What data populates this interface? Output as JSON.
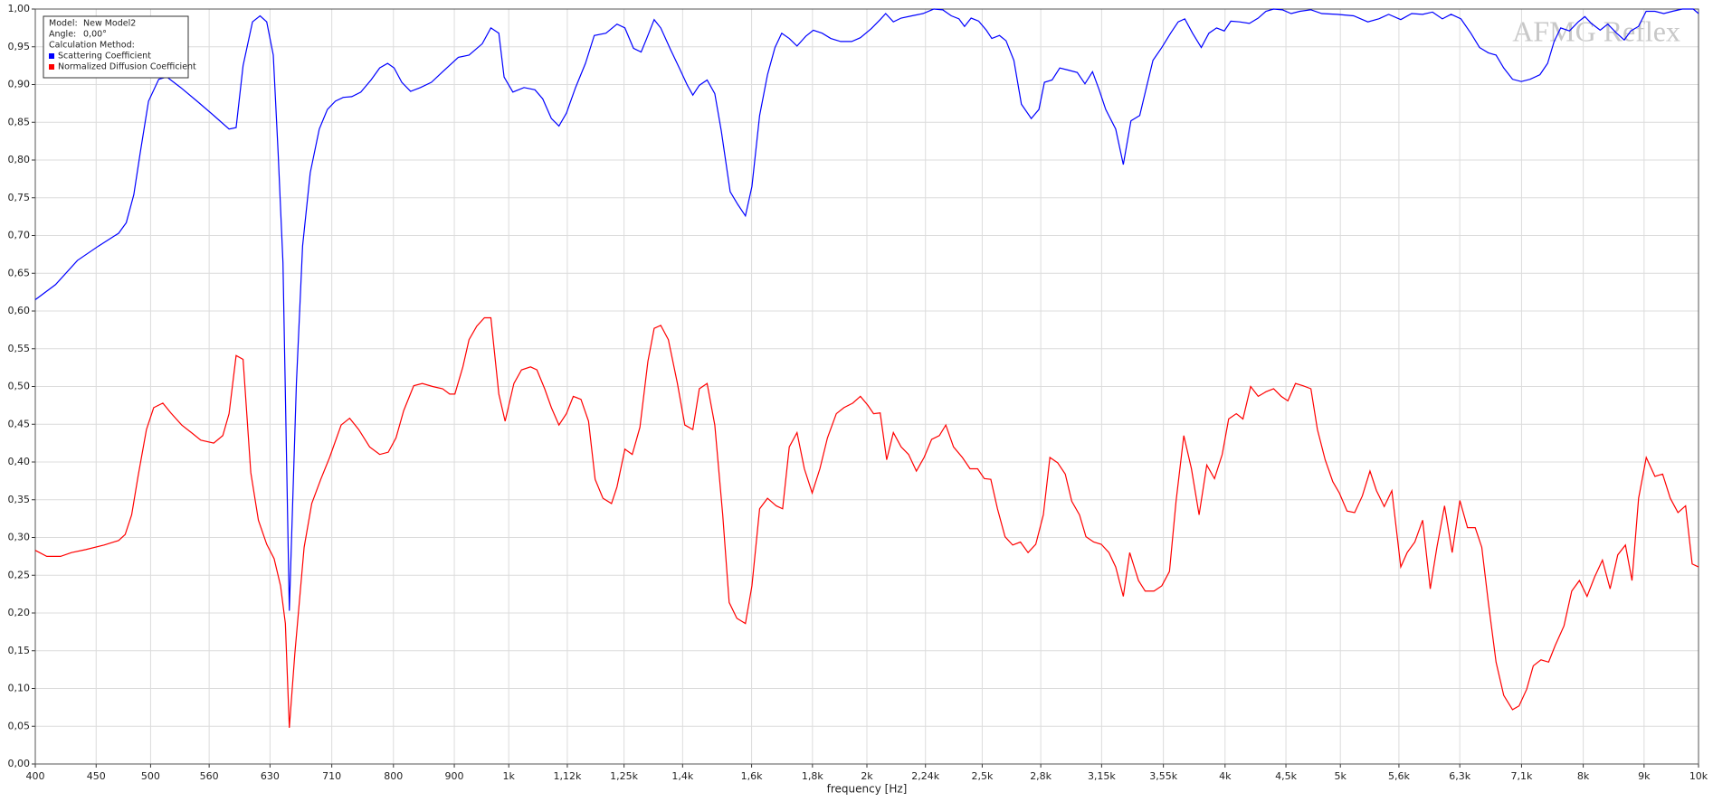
{
  "chart_data": {
    "type": "line",
    "x_label": "frequency [Hz]",
    "watermark": "AFMG Reflex",
    "info": [
      {
        "label": "Model:",
        "value": "New Model2"
      },
      {
        "label": "Angle:",
        "value": "0,00°"
      },
      {
        "label": "Calculation Method:"
      }
    ],
    "log_x": true,
    "grid": true,
    "legend": "upper left",
    "xlim": [
      400,
      10000
    ],
    "ylim": [
      0,
      1
    ],
    "xticks": [
      400,
      450,
      500,
      560,
      630,
      710,
      800,
      900,
      {
        "value": 1000,
        "label": "1k"
      },
      {
        "value": 1120,
        "label": "1,12k"
      },
      {
        "value": 1250,
        "label": "1,25k"
      },
      {
        "value": 1400,
        "label": "1,4k"
      },
      {
        "value": 1600,
        "label": "1,6k"
      },
      {
        "value": 1800,
        "label": "1,8k"
      },
      {
        "value": 2000,
        "label": "2k"
      },
      {
        "value": 2240,
        "label": "2,24k"
      },
      {
        "value": 2500,
        "label": "2,5k"
      },
      {
        "value": 2800,
        "label": "2,8k"
      },
      {
        "value": 3150,
        "label": "3,15k"
      },
      {
        "value": 3550,
        "label": "3,55k"
      },
      {
        "value": 4000,
        "label": "4k"
      },
      {
        "value": 4500,
        "label": "4,5k"
      },
      {
        "value": 5000,
        "label": "5k"
      },
      {
        "value": 5600,
        "label": "5,6k"
      },
      {
        "value": 6300,
        "label": "6,3k"
      },
      {
        "value": 7100,
        "label": "7,1k"
      },
      {
        "value": 8000,
        "label": "8k"
      },
      {
        "value": 9000,
        "label": "9k"
      },
      {
        "value": 10000,
        "label": "10k"
      }
    ],
    "yticks": [
      {
        "value": 0,
        "label": "0,00"
      },
      {
        "value": 0.05,
        "label": "0,05"
      },
      {
        "value": 0.1,
        "label": "0,10"
      },
      {
        "value": 0.15,
        "label": "0,15"
      },
      {
        "value": 0.2,
        "label": "0,20"
      },
      {
        "value": 0.25,
        "label": "0,25"
      },
      {
        "value": 0.3,
        "label": "0,30"
      },
      {
        "value": 0.35,
        "label": "0,35"
      },
      {
        "value": 0.4,
        "label": "0,40"
      },
      {
        "value": 0.45,
        "label": "0,45"
      },
      {
        "value": 0.5,
        "label": "0,50"
      },
      {
        "value": 0.55,
        "label": "0,55"
      },
      {
        "value": 0.6,
        "label": "0,60"
      },
      {
        "value": 0.65,
        "label": "0,65"
      },
      {
        "value": 0.7,
        "label": "0,70"
      },
      {
        "value": 0.75,
        "label": "0,75"
      },
      {
        "value": 0.8,
        "label": "0,80"
      },
      {
        "value": 0.85,
        "label": "0,85"
      },
      {
        "value": 0.9,
        "label": "0,90"
      },
      {
        "value": 0.95,
        "label": "0,95"
      },
      {
        "value": 1,
        "label": "1,00"
      }
    ],
    "series": [
      {
        "name": "Scattering Coefficient",
        "color": "#0000ff",
        "x": [
          400,
          416,
          434,
          452,
          470,
          477,
          484,
          490,
          498,
          508,
          516,
          530,
          547,
          565,
          582,
          590,
          598,
          609,
          618,
          626,
          634,
          640,
          646,
          654,
          663,
          671,
          681,
          693,
          704,
          715,
          726,
          738,
          751,
          766,
          779,
          791,
          801,
          813,
          827,
          843,
          861,
          880,
          907,
          926,
          950,
          966,
          981,
          991,
          1008,
          1030,
          1052,
          1068,
          1086,
          1102,
          1118,
          1138,
          1160,
          1180,
          1207,
          1233,
          1252,
          1273,
          1292,
          1306,
          1325,
          1342,
          1368,
          1391,
          1413,
          1428,
          1446,
          1468,
          1490,
          1509,
          1535,
          1558,
          1581,
          1601,
          1625,
          1650,
          1674,
          1696,
          1721,
          1747,
          1777,
          1803,
          1834,
          1865,
          1901,
          1942,
          1975,
          2017,
          2052,
          2074,
          2105,
          2137,
          2182,
          2229,
          2277,
          2316,
          2355,
          2390,
          2416,
          2447,
          2483,
          2520,
          2547,
          2585,
          2618,
          2658,
          2697,
          2749,
          2790,
          2820,
          2862,
          2905,
          2955,
          3005,
          3050,
          3095,
          3135,
          3175,
          3237,
          3285,
          3334,
          3391,
          3435,
          3479,
          3539,
          3600,
          3653,
          3700,
          3756,
          3820,
          3877,
          3935,
          3994,
          4045,
          4114,
          4193,
          4265,
          4329,
          4394,
          4469,
          4546,
          4623,
          4723,
          4824,
          4969,
          5130,
          5273,
          5386,
          5490,
          5620,
          5740,
          5863,
          5976,
          6091,
          6195,
          6314,
          6436,
          6546,
          6658,
          6758,
          6859,
          6977,
          7096,
          7218,
          7357,
          7467,
          7562,
          7659,
          7790,
          7923,
          8025,
          8127,
          8267,
          8390,
          8534,
          8661,
          8772,
          8903,
          9036,
          9191,
          9349,
          9508,
          9691,
          9899,
          10000
        ],
        "values": [
          0.615,
          0.635,
          0.667,
          0.686,
          0.703,
          0.717,
          0.754,
          0.809,
          0.878,
          0.907,
          0.91,
          0.896,
          0.878,
          0.859,
          0.841,
          0.843,
          0.925,
          0.983,
          0.991,
          0.983,
          0.939,
          0.809,
          0.664,
          0.203,
          0.504,
          0.686,
          0.783,
          0.841,
          0.867,
          0.878,
          0.883,
          0.884,
          0.89,
          0.906,
          0.922,
          0.928,
          0.922,
          0.903,
          0.891,
          0.896,
          0.903,
          0.917,
          0.936,
          0.939,
          0.954,
          0.975,
          0.968,
          0.91,
          0.89,
          0.896,
          0.893,
          0.881,
          0.855,
          0.845,
          0.862,
          0.896,
          0.928,
          0.965,
          0.968,
          0.98,
          0.975,
          0.948,
          0.943,
          0.961,
          0.986,
          0.975,
          0.946,
          0.922,
          0.899,
          0.886,
          0.899,
          0.906,
          0.888,
          0.838,
          0.758,
          0.741,
          0.726,
          0.765,
          0.859,
          0.913,
          0.949,
          0.968,
          0.961,
          0.951,
          0.964,
          0.972,
          0.968,
          0.961,
          0.957,
          0.957,
          0.962,
          0.974,
          0.986,
          0.994,
          0.983,
          0.988,
          0.991,
          0.994,
          1.0,
          0.999,
          0.991,
          0.987,
          0.977,
          0.988,
          0.984,
          0.972,
          0.961,
          0.965,
          0.958,
          0.932,
          0.874,
          0.855,
          0.867,
          0.903,
          0.906,
          0.922,
          0.919,
          0.916,
          0.901,
          0.917,
          0.893,
          0.867,
          0.841,
          0.794,
          0.852,
          0.859,
          0.896,
          0.932,
          0.949,
          0.968,
          0.983,
          0.987,
          0.968,
          0.949,
          0.968,
          0.975,
          0.971,
          0.984,
          0.983,
          0.981,
          0.988,
          0.997,
          1.0,
          0.999,
          0.994,
          0.997,
          0.999,
          0.994,
          0.993,
          0.991,
          0.983,
          0.987,
          0.993,
          0.986,
          0.994,
          0.993,
          0.996,
          0.987,
          0.993,
          0.987,
          0.968,
          0.949,
          0.942,
          0.939,
          0.922,
          0.907,
          0.904,
          0.907,
          0.913,
          0.928,
          0.957,
          0.975,
          0.971,
          0.983,
          0.99,
          0.981,
          0.972,
          0.98,
          0.968,
          0.959,
          0.971,
          0.977,
          0.997,
          0.997,
          0.994,
          0.997,
          1.0,
          1.0,
          0.994
        ]
      },
      {
        "name": "Normalized Diffusion Coefficient",
        "color": "#ff0000",
        "x": [
          400,
          409,
          420,
          429,
          441,
          457,
          470,
          476,
          482,
          488,
          496,
          503,
          512,
          520,
          531,
          542,
          551,
          565,
          575,
          582,
          590,
          598,
          607,
          616,
          626,
          635,
          643,
          649,
          654,
          661,
          673,
          683,
          695,
          707,
          723,
          735,
          748,
          764,
          779,
          792,
          804,
          816,
          832,
          846,
          863,
          880,
          892,
          901,
          915,
          926,
          940,
          954,
          966,
          981,
          993,
          1010,
          1025,
          1043,
          1056,
          1072,
          1086,
          1102,
          1118,
          1133,
          1150,
          1167,
          1182,
          1200,
          1220,
          1233,
          1252,
          1270,
          1289,
          1309,
          1325,
          1342,
          1362,
          1386,
          1406,
          1428,
          1446,
          1468,
          1490,
          1513,
          1532,
          1555,
          1581,
          1601,
          1625,
          1650,
          1678,
          1699,
          1721,
          1747,
          1772,
          1799,
          1826,
          1853,
          1885,
          1913,
          1946,
          1975,
          2004,
          2026,
          2052,
          2078,
          2105,
          2137,
          2168,
          2201,
          2234,
          2267,
          2301,
          2330,
          2365,
          2406,
          2442,
          2478,
          2510,
          2542,
          2575,
          2613,
          2652,
          2692,
          2732,
          2773,
          2814,
          2850,
          2893,
          2936,
          2973,
          3018,
          3056,
          3102,
          3148,
          3195,
          3237,
          3285,
          3326,
          3383,
          3427,
          3486,
          3539,
          3592,
          3638,
          3693,
          3748,
          3804,
          3861,
          3919,
          3978,
          4028,
          4088,
          4141,
          4203,
          4265,
          4329,
          4394,
          4459,
          4517,
          4584,
          4652,
          4723,
          4783,
          4855,
          4927,
          4990,
          5065,
          5140,
          5217,
          5295,
          5362,
          5443,
          5524,
          5620,
          5690,
          5775,
          5863,
          5950,
          6027,
          6117,
          6208,
          6301,
          6395,
          6491,
          6574,
          6658,
          6758,
          6859,
          6977,
          7066,
          7171,
          7263,
          7372,
          7482,
          7578,
          7708,
          7824,
          7941,
          8060,
          8180,
          8303,
          8427,
          8553,
          8681,
          8792,
          8905,
          9038,
          9191,
          9329,
          9468,
          9610,
          9753,
          9878,
          10000
        ],
        "values": [
          0.283,
          0.275,
          0.275,
          0.28,
          0.284,
          0.29,
          0.296,
          0.304,
          0.33,
          0.381,
          0.443,
          0.472,
          0.478,
          0.465,
          0.449,
          0.438,
          0.429,
          0.425,
          0.435,
          0.464,
          0.541,
          0.536,
          0.386,
          0.323,
          0.291,
          0.272,
          0.236,
          0.186,
          0.048,
          0.146,
          0.287,
          0.345,
          0.377,
          0.406,
          0.449,
          0.458,
          0.443,
          0.42,
          0.41,
          0.413,
          0.432,
          0.468,
          0.501,
          0.504,
          0.5,
          0.497,
          0.49,
          0.49,
          0.526,
          0.562,
          0.58,
          0.591,
          0.591,
          0.49,
          0.454,
          0.504,
          0.522,
          0.526,
          0.522,
          0.497,
          0.472,
          0.449,
          0.464,
          0.487,
          0.483,
          0.454,
          0.377,
          0.352,
          0.345,
          0.367,
          0.417,
          0.41,
          0.446,
          0.533,
          0.577,
          0.581,
          0.562,
          0.504,
          0.449,
          0.443,
          0.497,
          0.504,
          0.449,
          0.33,
          0.214,
          0.193,
          0.186,
          0.236,
          0.338,
          0.352,
          0.342,
          0.338,
          0.42,
          0.439,
          0.391,
          0.359,
          0.391,
          0.432,
          0.464,
          0.472,
          0.478,
          0.487,
          0.475,
          0.464,
          0.465,
          0.403,
          0.439,
          0.42,
          0.41,
          0.388,
          0.406,
          0.43,
          0.435,
          0.449,
          0.42,
          0.406,
          0.391,
          0.391,
          0.378,
          0.377,
          0.338,
          0.301,
          0.29,
          0.294,
          0.28,
          0.291,
          0.33,
          0.406,
          0.399,
          0.384,
          0.348,
          0.33,
          0.301,
          0.294,
          0.291,
          0.28,
          0.261,
          0.222,
          0.28,
          0.243,
          0.229,
          0.229,
          0.236,
          0.255,
          0.348,
          0.435,
          0.391,
          0.33,
          0.396,
          0.378,
          0.41,
          0.457,
          0.464,
          0.457,
          0.5,
          0.487,
          0.493,
          0.497,
          0.487,
          0.481,
          0.504,
          0.501,
          0.497,
          0.443,
          0.403,
          0.374,
          0.359,
          0.335,
          0.333,
          0.355,
          0.388,
          0.362,
          0.341,
          0.362,
          0.261,
          0.28,
          0.294,
          0.323,
          0.232,
          0.287,
          0.342,
          0.28,
          0.349,
          0.313,
          0.313,
          0.287,
          0.214,
          0.135,
          0.091,
          0.072,
          0.077,
          0.099,
          0.13,
          0.138,
          0.135,
          0.157,
          0.183,
          0.229,
          0.243,
          0.222,
          0.248,
          0.27,
          0.232,
          0.277,
          0.29,
          0.243,
          0.352,
          0.406,
          0.381,
          0.384,
          0.352,
          0.333,
          0.342,
          0.265,
          0.261
        ]
      }
    ]
  }
}
